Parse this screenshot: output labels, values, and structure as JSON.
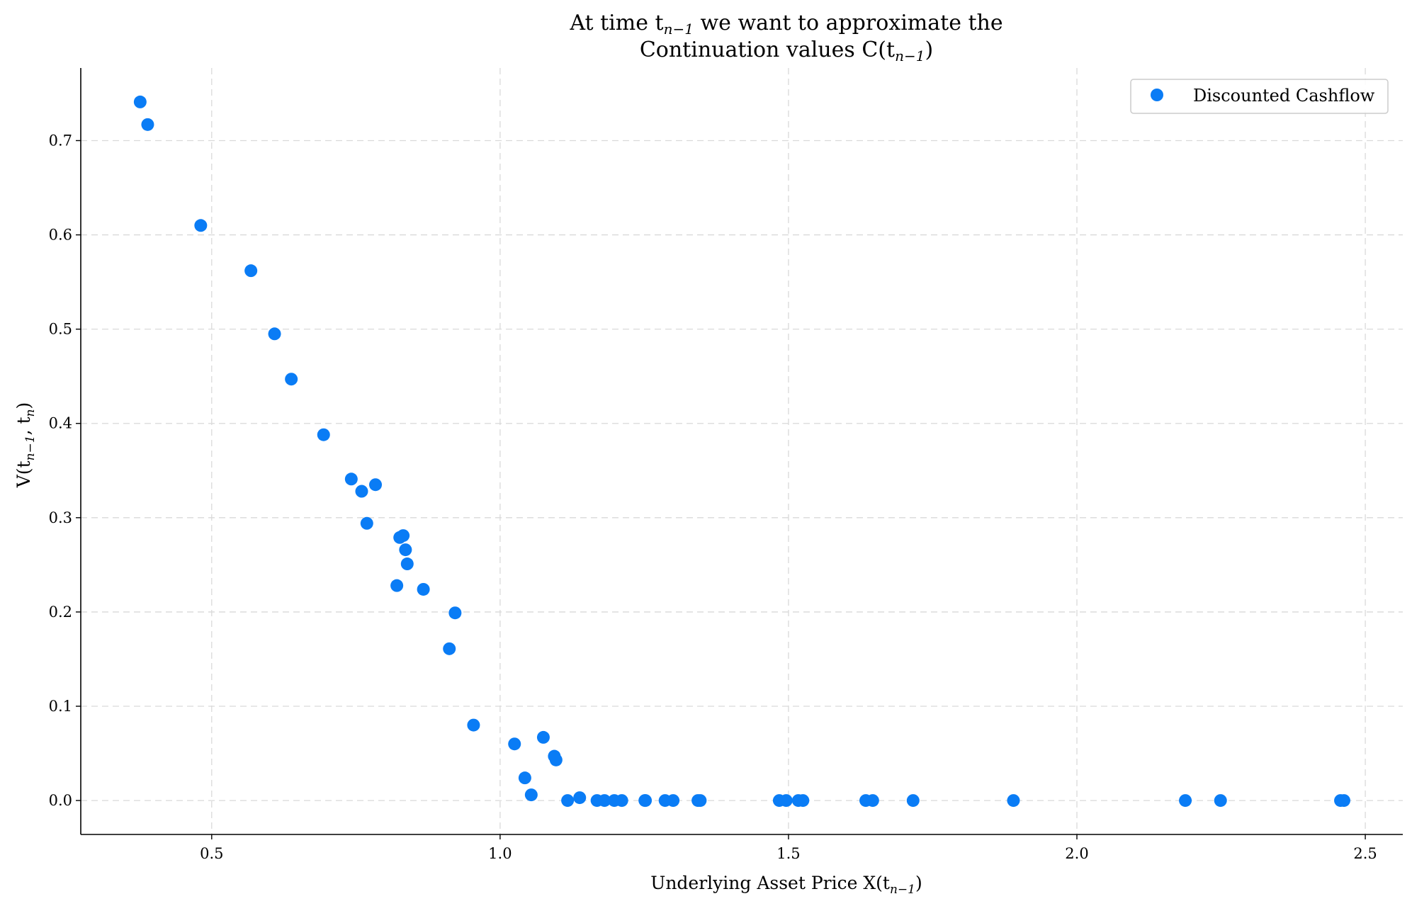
{
  "chart_data": {
    "type": "scatter",
    "title_line1": "At time t",
    "title_line1_sub": "n−1",
    "title_line1_rest": " we want to approximate the",
    "title_line2": "Continuation values C(t",
    "title_line2_sub": "n−1",
    "title_line2_rest": ")",
    "xlabel": "Underlying Asset Price X(t",
    "xlabel_sub": "n−1",
    "xlabel_rest": ")",
    "ylabel": "V(t",
    "ylabel_sub1": "n−1",
    "ylabel_mid": ", t",
    "ylabel_sub2": "n",
    "ylabel_rest": ")",
    "xlim": [
      0.273,
      2.565
    ],
    "ylim": [
      -0.036,
      0.777
    ],
    "xticks": [
      0.5,
      1.0,
      1.5,
      2.0,
      2.5
    ],
    "xtick_labels": [
      "0.5",
      "1.0",
      "1.5",
      "2.0",
      "2.5"
    ],
    "yticks": [
      0.0,
      0.1,
      0.2,
      0.3,
      0.4,
      0.5,
      0.6,
      0.7
    ],
    "ytick_labels": [
      "0.0",
      "0.1",
      "0.2",
      "0.3",
      "0.4",
      "0.5",
      "0.6",
      "0.7"
    ],
    "grid": true,
    "legend": {
      "position": "top-right",
      "entries": [
        "Discounted Cashflow"
      ]
    },
    "series": [
      {
        "name": "Discounted Cashflow",
        "color": "#0a7cf5",
        "points": [
          [
            0.376,
            0.741
          ],
          [
            0.389,
            0.717
          ],
          [
            0.481,
            0.61
          ],
          [
            0.568,
            0.562
          ],
          [
            0.609,
            0.495
          ],
          [
            0.638,
            0.447
          ],
          [
            0.694,
            0.388
          ],
          [
            0.742,
            0.341
          ],
          [
            0.76,
            0.328
          ],
          [
            0.769,
            0.294
          ],
          [
            0.784,
            0.335
          ],
          [
            0.821,
            0.228
          ],
          [
            0.826,
            0.279
          ],
          [
            0.832,
            0.281
          ],
          [
            0.836,
            0.266
          ],
          [
            0.839,
            0.251
          ],
          [
            0.867,
            0.224
          ],
          [
            0.912,
            0.161
          ],
          [
            0.922,
            0.199
          ],
          [
            0.954,
            0.08
          ],
          [
            1.025,
            0.06
          ],
          [
            1.043,
            0.024
          ],
          [
            1.054,
            0.006
          ],
          [
            1.075,
            0.067
          ],
          [
            1.094,
            0.047
          ],
          [
            1.097,
            0.043
          ],
          [
            1.117,
            0.0
          ],
          [
            1.138,
            0.003
          ],
          [
            1.168,
            0.0
          ],
          [
            1.181,
            0.0
          ],
          [
            1.198,
            0.0
          ],
          [
            1.211,
            0.0
          ],
          [
            1.251,
            0.0
          ],
          [
            1.252,
            0.0
          ],
          [
            1.286,
            0.0
          ],
          [
            1.3,
            0.0
          ],
          [
            1.343,
            0.0
          ],
          [
            1.347,
            0.0
          ],
          [
            1.484,
            0.0
          ],
          [
            1.496,
            0.0
          ],
          [
            1.517,
            0.0
          ],
          [
            1.525,
            0.0
          ],
          [
            1.634,
            0.0
          ],
          [
            1.646,
            0.0
          ],
          [
            1.716,
            0.0
          ],
          [
            1.89,
            0.0
          ],
          [
            2.188,
            0.0
          ],
          [
            2.249,
            0.0
          ],
          [
            2.457,
            0.0
          ],
          [
            2.463,
            0.0
          ]
        ]
      }
    ]
  }
}
